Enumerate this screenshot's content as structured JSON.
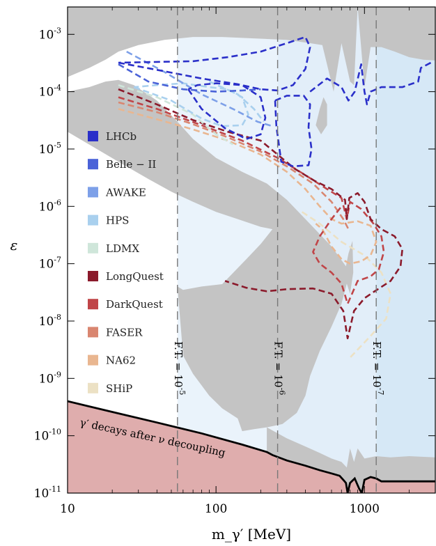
{
  "chart_data": {
    "type": "line",
    "xscale": "log",
    "yscale": "log",
    "xlim": [
      10,
      3000
    ],
    "ylim": [
      1e-11,
      0.003
    ],
    "xlabel": "m_γ′ [MeV]",
    "ylabel": "ε",
    "x_ticks": [
      {
        "value": 10,
        "label": "10"
      },
      {
        "value": 100,
        "label": "100"
      },
      {
        "value": 1000,
        "label": "1000"
      }
    ],
    "y_ticks": [
      {
        "value": 0.001,
        "exp": "-3"
      },
      {
        "value": 0.0001,
        "exp": "-4"
      },
      {
        "value": 1e-05,
        "exp": "-5"
      },
      {
        "value": 1e-06,
        "exp": "-6"
      },
      {
        "value": 1e-07,
        "exp": "-7"
      },
      {
        "value": 1e-08,
        "exp": "-8"
      },
      {
        "value": 1e-09,
        "exp": "-9"
      },
      {
        "value": 1e-10,
        "exp": "-10"
      },
      {
        "value": 1e-11,
        "exp": "-11"
      }
    ],
    "fine_tuning_lines": [
      {
        "x": 55,
        "label": "F.T. = 10",
        "exp": "-5"
      },
      {
        "x": 260,
        "label": "F.T. = 10",
        "exp": "-6"
      },
      {
        "x": 1200,
        "label": "F.T. = 10",
        "exp": "-7"
      }
    ],
    "annotation": "γ′ decays after ν decoupling",
    "legend": {
      "placement": "left",
      "entries": [
        {
          "name": "LHCb",
          "color": "#2a2fc9"
        },
        {
          "name": "Belle − II",
          "color": "#4a62d8"
        },
        {
          "name": "AWAKE",
          "color": "#7da0e8"
        },
        {
          "name": "HPS",
          "color": "#a9d0ee"
        },
        {
          "name": "LDMX",
          "color": "#cfe6da"
        },
        {
          "name": "LongQuest",
          "color": "#8b1a2b"
        },
        {
          "name": "DarkQuest",
          "color": "#c04548"
        },
        {
          "name": "FASER",
          "color": "#d98670"
        },
        {
          "name": "NA62",
          "color": "#e9b690"
        },
        {
          "name": "SHiP",
          "color": "#ece1c4"
        }
      ]
    },
    "excluded_color": "#c4c4c4",
    "cosmology_region_color": "#dfadad",
    "series": [
      {
        "name": "LHCb",
        "color": "#2a2fc9",
        "segments": [
          [
            [
              22,
              0.00032
            ],
            [
              40,
              0.00024
            ],
            [
              80,
              0.00017
            ],
            [
              140,
              0.000135
            ],
            [
              200,
              0.00011
            ],
            [
              260,
              0.000105
            ],
            [
              330,
              0.00013
            ],
            [
              400,
              0.00025
            ],
            [
              430,
              0.0006
            ],
            [
              400,
              0.0009
            ],
            [
              300,
              0.0007
            ],
            [
              200,
              0.0005
            ],
            [
              120,
              0.0004
            ],
            [
              70,
              0.00034
            ],
            [
              40,
              0.00033
            ],
            [
              22,
              0.00032
            ]
          ],
          [
            [
              65,
              0.00011
            ],
            [
              80,
              5e-05
            ],
            [
              115,
              2.3e-05
            ],
            [
              160,
              1.5e-05
            ],
            [
              200,
              1.8e-05
            ],
            [
              215,
              3.5e-05
            ],
            [
              200,
              8e-05
            ],
            [
              150,
              0.00013
            ],
            [
              100,
              0.00014
            ],
            [
              75,
              0.00013
            ],
            [
              65,
              0.00011
            ]
          ],
          [
            [
              250,
              7e-05
            ],
            [
              255,
              2.5e-05
            ],
            [
              275,
              6e-06
            ],
            [
              330,
              5e-06
            ],
            [
              420,
              5.2e-06
            ],
            [
              440,
              1e-05
            ],
            [
              420,
              2.4e-05
            ],
            [
              430,
              6e-05
            ],
            [
              390,
              8.5e-05
            ],
            [
              300,
              8.5e-05
            ],
            [
              250,
              7e-05
            ]
          ],
          [
            [
              430,
              0.0001
            ],
            [
              560,
              0.00017
            ],
            [
              700,
              0.00012
            ],
            [
              780,
              7e-05
            ],
            [
              860,
              0.0001
            ],
            [
              950,
              0.0003
            ],
            [
              1000,
              0.0001
            ],
            [
              1040,
              6e-05
            ],
            [
              1100,
              0.0001
            ],
            [
              1300,
              0.00012
            ],
            [
              1800,
              0.00012
            ],
            [
              2300,
              0.00015
            ],
            [
              2400,
              0.00026
            ],
            [
              2800,
              0.00032
            ]
          ]
        ]
      },
      {
        "name": "Belle − II",
        "color": "#4a62d8",
        "segments": [
          [
            [
              22,
              0.0003
            ],
            [
              35,
              0.00015
            ],
            [
              60,
              0.00011
            ],
            [
              100,
              0.0001
            ],
            [
              150,
              0.000105
            ],
            [
              200,
              0.00011
            ]
          ]
        ]
      },
      {
        "name": "AWAKE",
        "color": "#7da0e8",
        "segments": [
          [
            [
              25,
              0.0005
            ],
            [
              45,
              0.00022
            ],
            [
              80,
              9e-05
            ],
            [
              130,
              5e-05
            ],
            [
              190,
              3e-05
            ],
            [
              240,
              2.5e-05
            ]
          ]
        ]
      },
      {
        "name": "HPS",
        "color": "#a9d0ee",
        "segments": [
          [
            [
              28,
              0.00012
            ],
            [
              50,
              7e-05
            ],
            [
              80,
              3.4e-05
            ],
            [
              110,
              2.5e-05
            ],
            [
              150,
              2.6e-05
            ],
            [
              165,
              4e-05
            ],
            [
              150,
              8e-05
            ],
            [
              120,
              0.00011
            ],
            [
              90,
              0.00012
            ],
            [
              60,
              0.00014
            ],
            [
              40,
              0.00013
            ],
            [
              28,
              0.00012
            ]
          ],
          [
            [
              90,
              0.00015
            ],
            [
              140,
              9e-05
            ],
            [
              180,
              5e-05
            ],
            [
              210,
              3e-05
            ]
          ]
        ]
      },
      {
        "name": "LDMX",
        "color": "#cfe6da",
        "segments": [
          [
            [
              22,
              0.00013
            ],
            [
              40,
              8e-05
            ],
            [
              70,
              4e-05
            ],
            [
              100,
              1.8e-05
            ],
            [
              130,
              1.2e-05
            ]
          ]
        ]
      },
      {
        "name": "LongQuest",
        "color": "#8b1a2b",
        "segments": [
          [
            [
              22,
              0.00011
            ],
            [
              40,
              6e-05
            ],
            [
              70,
              3.2e-05
            ],
            [
              120,
              2e-05
            ],
            [
              200,
              1.4e-05
            ],
            [
              260,
              8e-06
            ],
            [
              340,
              4.5e-06
            ],
            [
              460,
              2.8e-06
            ],
            [
              600,
              2e-06
            ],
            [
              740,
              1.3e-06
            ],
            [
              760,
              6e-07
            ],
            [
              790,
              1.4e-06
            ],
            [
              900,
              1.7e-06
            ],
            [
              1000,
              1.2e-06
            ],
            [
              1100,
              6e-07
            ],
            [
              1300,
              4e-07
            ],
            [
              1600,
              3e-07
            ],
            [
              1800,
              1.8e-07
            ],
            [
              1750,
              9e-08
            ],
            [
              1500,
              5e-08
            ],
            [
              1150,
              3.2e-08
            ],
            [
              1000,
              2.5e-08
            ],
            [
              850,
              1.5e-08
            ],
            [
              770,
              5e-09
            ],
            [
              720,
              1.5e-08
            ],
            [
              600,
              3e-08
            ],
            [
              450,
              3.7e-08
            ],
            [
              300,
              3.6e-08
            ],
            [
              220,
              3.3e-08
            ],
            [
              160,
              3.8e-08
            ],
            [
              115,
              5e-08
            ]
          ]
        ]
      },
      {
        "name": "DarkQuest",
        "color": "#c04548",
        "segments": [
          [
            [
              22,
              8e-05
            ],
            [
              40,
              5e-05
            ],
            [
              80,
              2.6e-05
            ],
            [
              150,
              1.4e-05
            ],
            [
              260,
              7e-06
            ],
            [
              400,
              3.5e-06
            ],
            [
              560,
              2e-06
            ],
            [
              700,
              1.4e-06
            ],
            [
              760,
              6e-07
            ],
            [
              800,
              1.2e-06
            ],
            [
              950,
              9e-07
            ],
            [
              1150,
              5e-07
            ],
            [
              1300,
              3e-07
            ],
            [
              1350,
              1.6e-07
            ],
            [
              1250,
              8e-08
            ],
            [
              1100,
              6e-08
            ],
            [
              900,
              5e-08
            ],
            [
              770,
              2e-08
            ],
            [
              700,
              4.5e-08
            ],
            [
              600,
              7e-08
            ],
            [
              500,
              1e-07
            ],
            [
              450,
              1.6e-07
            ],
            [
              500,
              3e-07
            ],
            [
              600,
              6e-07
            ],
            [
              700,
              1e-06
            ]
          ]
        ]
      },
      {
        "name": "FASER",
        "color": "#d98670",
        "segments": [
          [
            [
              22,
              6.5e-05
            ],
            [
              40,
              4.4e-05
            ],
            [
              70,
              2.7e-05
            ],
            [
              120,
              1.6e-05
            ],
            [
              200,
              9e-06
            ],
            [
              300,
              5e-06
            ],
            [
              450,
              2.5e-06
            ],
            [
              600,
              1.2e-06
            ],
            [
              720,
              6e-07
            ],
            [
              780,
              4e-07
            ]
          ]
        ]
      },
      {
        "name": "NA62",
        "color": "#e9b690",
        "segments": [
          [
            [
              22,
              5e-05
            ],
            [
              40,
              3.3e-05
            ],
            [
              70,
              2.2e-05
            ],
            [
              120,
              1.4e-05
            ],
            [
              200,
              8e-06
            ],
            [
              300,
              4e-06
            ],
            [
              400,
              2e-06
            ],
            [
              500,
              1e-06
            ],
            [
              600,
              6e-07
            ],
            [
              700,
              5e-07
            ],
            [
              900,
              5.5e-07
            ],
            [
              1100,
              4.6e-07
            ],
            [
              1200,
              2.4e-07
            ],
            [
              1100,
              1.4e-07
            ],
            [
              950,
              1.1e-07
            ],
            [
              800,
              1e-07
            ],
            [
              700,
              1.2e-07
            ],
            [
              600,
              2e-07
            ],
            [
              520,
              4e-07
            ],
            [
              470,
              5e-07
            ]
          ]
        ]
      },
      {
        "name": "SHiP",
        "color": "#ece1c4",
        "segments": [
          [
            [
              380,
              8e-07
            ],
            [
              500,
              5e-07
            ],
            [
              700,
              2.4e-07
            ],
            [
              1000,
              1.4e-07
            ],
            [
              1300,
              7e-08
            ],
            [
              1500,
              3e-08
            ],
            [
              1400,
              1.1e-08
            ],
            [
              1100,
              5.5e-09
            ],
            [
              800,
              2.3e-09
            ]
          ]
        ]
      }
    ]
  }
}
